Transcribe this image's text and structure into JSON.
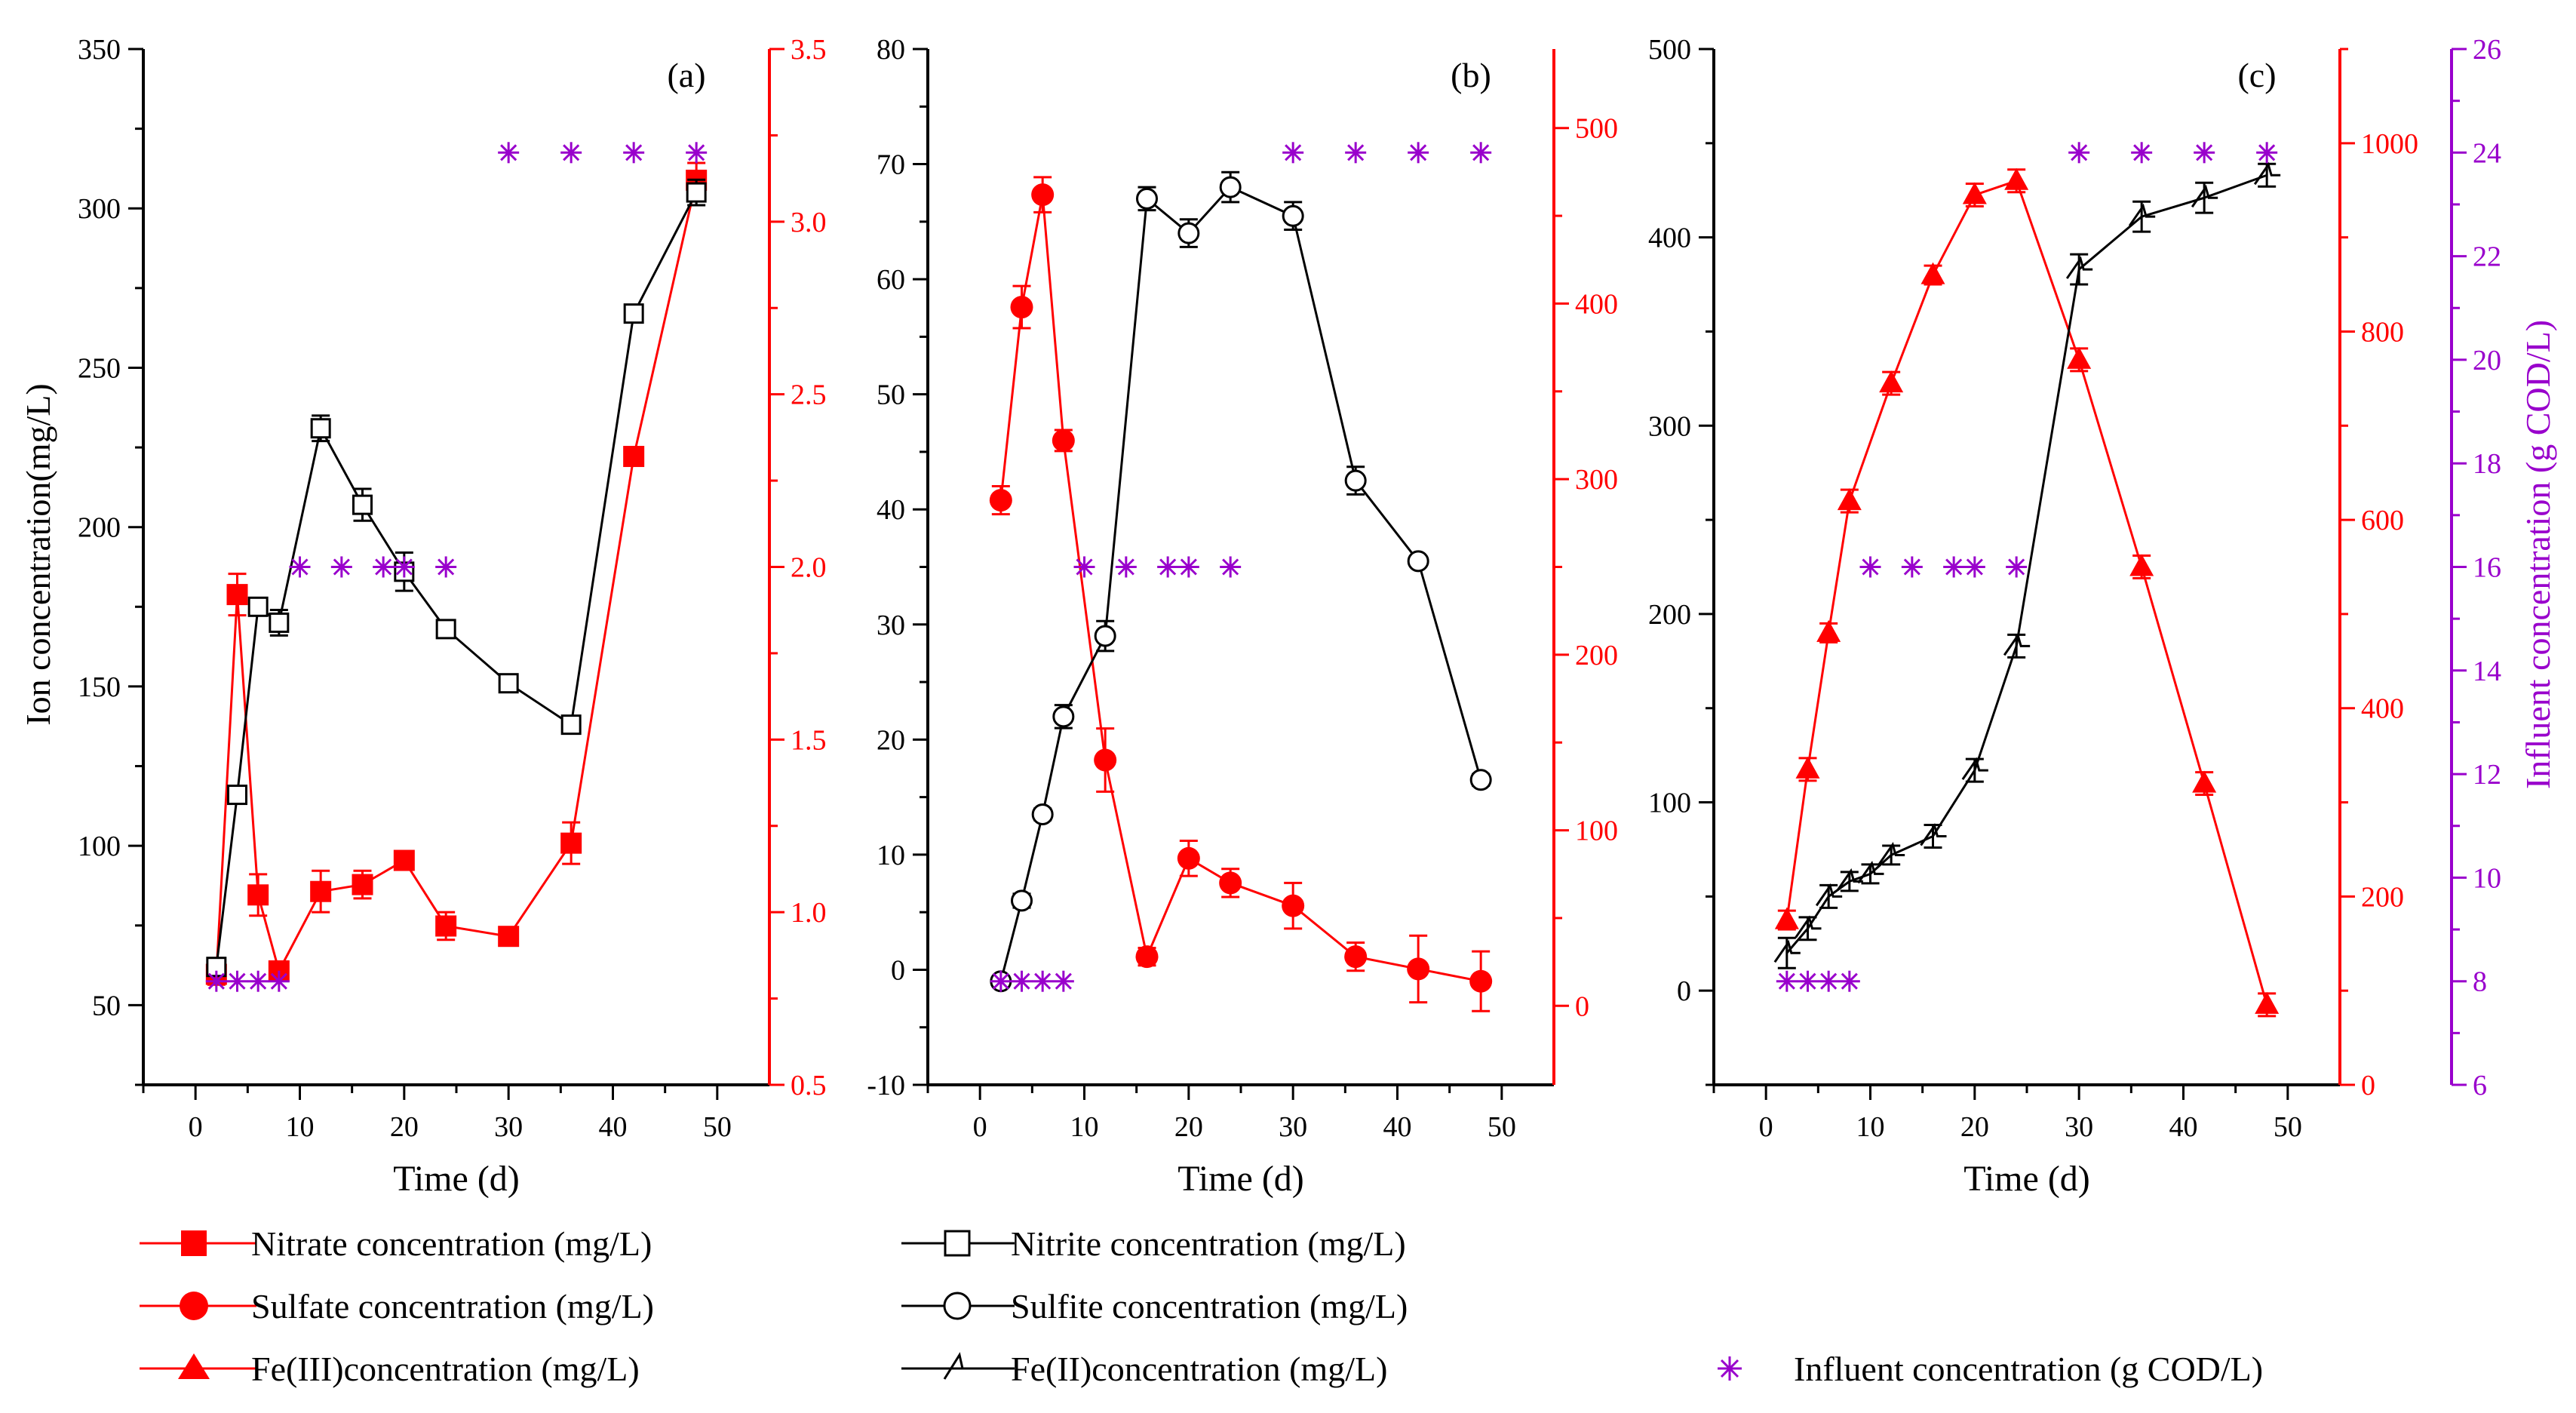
{
  "colors": {
    "black": "#000000",
    "red": "#ff0000",
    "purple": "#9900cc"
  },
  "shared_x_axis": {
    "label": "Time (d)",
    "range": [
      -5,
      55
    ],
    "ticks": [
      0,
      10,
      20,
      30,
      40,
      50
    ],
    "tick_labels": [
      "0",
      "10",
      "20",
      "30",
      "40",
      "50"
    ]
  },
  "influent_axis": {
    "label": "Influent concentration (g COD/L)",
    "range": [
      6,
      26
    ],
    "ticks": [
      6,
      8,
      10,
      12,
      14,
      16,
      18,
      20,
      22,
      24,
      26
    ],
    "tick_labels": [
      "6",
      "8",
      "10",
      "12",
      "14",
      "16",
      "18",
      "20",
      "22",
      "24",
      "26"
    ]
  },
  "legend": {
    "nitrate": "Nitrate concentration (mg/L)",
    "nitrite": "Nitrite concentration (mg/L)",
    "sulfate": "Sulfate concentration (mg/L)",
    "sulfite": "Sulfite concentration (mg/L)",
    "fe3": "Fe(III)concentration (mg/L)",
    "fe2": "Fe(II)concentration (mg/L)",
    "influent": "Influent concentration (g COD/L)"
  },
  "chart_data": [
    {
      "type": "line",
      "panel_label": "(a)",
      "xlabel": "Time (d)",
      "ylabel": "Ion concentration(mg/L)",
      "left_axis": {
        "range": [
          25,
          350
        ],
        "ticks": [
          50,
          100,
          150,
          200,
          250,
          300,
          350
        ],
        "tick_labels": [
          "50",
          "100",
          "150",
          "200",
          "250",
          "300",
          "350"
        ]
      },
      "right_axis": {
        "range": [
          0.5,
          3.5
        ],
        "ticks": [
          0.5,
          1.0,
          1.5,
          2.0,
          2.5,
          3.0,
          3.5
        ],
        "tick_labels": [
          "0.5",
          "1.0",
          "1.5",
          "2.0",
          "2.5",
          "3.0",
          "3.5"
        ]
      },
      "series": [
        {
          "name": "Nitrate concentration (mg/L)",
          "axis": "right",
          "color": "#ff0000",
          "marker": "square-filled",
          "x": [
            2,
            4,
            6,
            8,
            12,
            16,
            20,
            24,
            30,
            36,
            42,
            48
          ],
          "y": [
            0.82,
            1.92,
            1.05,
            0.83,
            1.06,
            1.08,
            1.15,
            0.96,
            0.93,
            1.2,
            2.32,
            3.12
          ],
          "err": [
            0.03,
            0.06,
            0.06,
            0.02,
            0.06,
            0.04,
            0.02,
            0.04,
            0.02,
            0.06,
            0.02,
            0.05
          ]
        },
        {
          "name": "Nitrite concentration (mg/L)",
          "axis": "left",
          "color": "#000000",
          "marker": "square-open",
          "x": [
            2,
            4,
            6,
            8,
            12,
            16,
            20,
            24,
            30,
            36,
            42,
            48
          ],
          "y": [
            62,
            116,
            175,
            170,
            231,
            207,
            186,
            168,
            151,
            138,
            267,
            305
          ],
          "err": [
            2,
            2,
            2,
            4,
            4,
            5,
            6,
            2,
            2,
            2,
            2,
            4
          ]
        },
        {
          "name": "Influent concentration (g COD/L)",
          "axis": "influent",
          "color": "#9900cc",
          "marker": "asterisk",
          "x": [
            2,
            4,
            6,
            8,
            10,
            14,
            18,
            20,
            24,
            30,
            36,
            42,
            48
          ],
          "y": [
            8,
            8,
            8,
            8,
            16,
            16,
            16,
            16,
            16,
            24,
            24,
            24,
            24
          ]
        }
      ]
    },
    {
      "type": "line",
      "panel_label": "(b)",
      "xlabel": "Time (d)",
      "left_axis": {
        "range": [
          -10,
          80
        ],
        "ticks": [
          -10,
          0,
          10,
          20,
          30,
          40,
          50,
          60,
          70,
          80
        ],
        "tick_labels": [
          "-10",
          "0",
          "10",
          "20",
          "30",
          "40",
          "50",
          "60",
          "70",
          "80"
        ]
      },
      "right_axis": {
        "range": [
          -45,
          545
        ],
        "ticks": [
          0,
          100,
          200,
          300,
          400,
          500
        ],
        "tick_labels": [
          "0",
          "100",
          "200",
          "300",
          "400",
          "500"
        ]
      },
      "series": [
        {
          "name": "Sulfate concentration (mg/L)",
          "axis": "right",
          "color": "#ff0000",
          "marker": "circle-filled",
          "x": [
            2,
            4,
            6,
            8,
            12,
            16,
            20,
            24,
            30,
            36,
            42,
            48
          ],
          "y": [
            288,
            398,
            462,
            322,
            140,
            28,
            84,
            70,
            57,
            28,
            21,
            14
          ],
          "err": [
            8,
            12,
            10,
            6,
            18,
            5,
            10,
            8,
            13,
            8,
            19,
            17
          ]
        },
        {
          "name": "Sulfite concentration (mg/L)",
          "axis": "left",
          "color": "#000000",
          "marker": "circle-open",
          "x": [
            2,
            4,
            6,
            8,
            12,
            16,
            20,
            24,
            30,
            36,
            42,
            48
          ],
          "y": [
            -1,
            6,
            13.5,
            22,
            29,
            67,
            64,
            68,
            65.5,
            42.5,
            35.5,
            16.5
          ],
          "err": [
            0.3,
            0.6,
            0.5,
            1,
            1.3,
            1,
            1.2,
            1.3,
            1.2,
            1.2,
            0.4,
            0.5
          ]
        },
        {
          "name": "Influent concentration (g COD/L)",
          "axis": "influent",
          "color": "#9900cc",
          "marker": "asterisk",
          "x": [
            2,
            4,
            6,
            8,
            10,
            14,
            18,
            20,
            24,
            30,
            36,
            42,
            48
          ],
          "y": [
            8,
            8,
            8,
            8,
            16,
            16,
            16,
            16,
            16,
            24,
            24,
            24,
            24
          ]
        }
      ]
    },
    {
      "type": "line",
      "panel_label": "(c)",
      "xlabel": "Time (d)",
      "left_axis": {
        "range": [
          -50,
          500
        ],
        "ticks": [
          0,
          100,
          200,
          300,
          400,
          500
        ],
        "tick_labels": [
          "0",
          "100",
          "200",
          "300",
          "400",
          "500"
        ]
      },
      "right_axis": {
        "range": [
          0,
          1100
        ],
        "ticks": [
          0,
          200,
          400,
          600,
          800,
          1000
        ],
        "tick_labels": [
          "0",
          "200",
          "400",
          "600",
          "800",
          "1000"
        ]
      },
      "series": [
        {
          "name": "Fe(III)concentration (mg/L)",
          "axis": "right",
          "color": "#ff0000",
          "marker": "triangle-filled",
          "x": [
            2,
            4,
            6,
            8,
            12,
            16,
            20,
            24,
            30,
            36,
            42,
            48
          ],
          "y": [
            175,
            335,
            480,
            620,
            745,
            860,
            945,
            960,
            770,
            550,
            320,
            85
          ],
          "err": [
            10,
            12,
            10,
            12,
            12,
            10,
            12,
            12,
            12,
            12,
            12,
            12
          ]
        },
        {
          "name": "Fe(II)concentration (mg/L)",
          "axis": "left",
          "color": "#000000",
          "marker": "half-open",
          "x": [
            2,
            4,
            6,
            8,
            10,
            12,
            16,
            20,
            24,
            30,
            36,
            42,
            48
          ],
          "y": [
            20,
            33,
            50,
            58,
            62,
            72,
            82,
            117,
            183,
            383,
            411,
            421,
            433
          ],
          "err": [
            8,
            6,
            6,
            5,
            5,
            5,
            6,
            6,
            6,
            8,
            8,
            8,
            6
          ]
        },
        {
          "name": "Influent concentration (g COD/L)",
          "axis": "influent",
          "color": "#9900cc",
          "marker": "asterisk",
          "x": [
            2,
            4,
            6,
            8,
            10,
            14,
            18,
            20,
            24,
            30,
            36,
            42,
            48
          ],
          "y": [
            8,
            8,
            8,
            8,
            16,
            16,
            16,
            16,
            16,
            24,
            24,
            24,
            24
          ]
        }
      ]
    }
  ]
}
